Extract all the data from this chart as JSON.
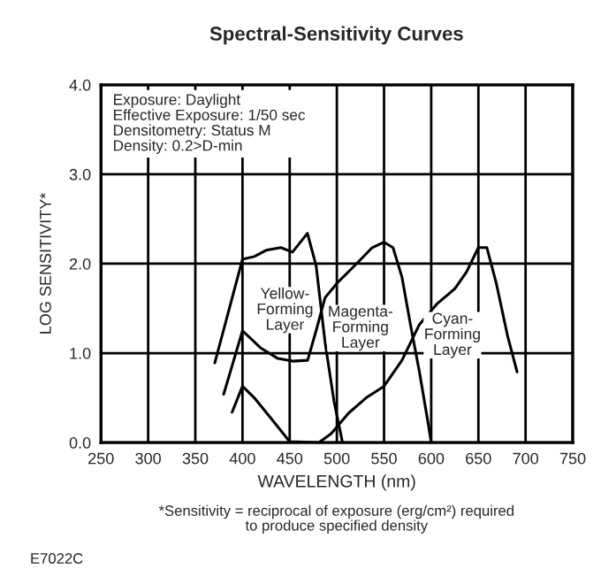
{
  "chart_data": {
    "type": "line",
    "title": "Spectral-Sensitivity Curves",
    "xlabel": "WAVELENGTH (nm)",
    "ylabel": "LOG SENSITIVITY*",
    "xlim": [
      250,
      750
    ],
    "xticks": [
      250,
      300,
      350,
      400,
      450,
      500,
      550,
      600,
      650,
      700,
      750
    ],
    "ylim": [
      0,
      4
    ],
    "yticks": [
      {
        "value": 0,
        "label": "0.0"
      },
      {
        "value": 1,
        "label": "1.0"
      },
      {
        "value": 2,
        "label": "2.0"
      },
      {
        "value": 3,
        "label": "3.0"
      },
      {
        "value": 4,
        "label": "4.0"
      }
    ],
    "grid": true,
    "marker": "none",
    "line_style": "solid",
    "series": [
      {
        "color": "#000000",
        "x": [
          370.6,
          400,
          412.5,
          425,
          440.6,
          453,
          468.8,
          478,
          487.5,
          497,
          506
        ],
        "values": [
          0.89,
          2.05,
          2.08,
          2.15,
          2.18,
          2.13,
          2.34,
          1.98,
          1.12,
          0.46,
          0
        ]
      },
      {
        "color": "#000000",
        "x": [
          380,
          400,
          419,
          437.5,
          453,
          469,
          478,
          487.5,
          500,
          519,
          537.5,
          550,
          559.5,
          569,
          578,
          587.5,
          597,
          600
        ],
        "values": [
          0.54,
          1.25,
          1.06,
          0.94,
          0.91,
          0.92,
          1.25,
          1.62,
          1.78,
          1.98,
          2.18,
          2.24,
          2.18,
          1.85,
          1.32,
          0.79,
          0.2,
          0
        ]
      },
      {
        "color": "#000000",
        "x": [
          389,
          400,
          412.5,
          431,
          450,
          481,
          494,
          512.5,
          531,
          550,
          569,
          587.5,
          606,
          625,
          637.5,
          650,
          659,
          669,
          681,
          691
        ],
        "values": [
          0.34,
          0.63,
          0.5,
          0.26,
          0.01,
          0,
          0.1,
          0.33,
          0.5,
          0.63,
          0.92,
          1.32,
          1.55,
          1.72,
          1.91,
          2.18,
          2.18,
          1.78,
          1.19,
          0.79
        ]
      }
    ],
    "annotations": [
      "Yellow-\nForming\nLayer",
      "Magenta-\nForming\nLayer",
      "Cyan-\nForming\nLayer",
      "Exposure: Daylight\nEffective Exposure: 1/50 sec\nDensitometry: Status M\nDensity: 0.2>D-min",
      "*Sensitivity = reciprocal of exposure (erg/cm²) required\nto produce specified density",
      "E7022C"
    ]
  }
}
